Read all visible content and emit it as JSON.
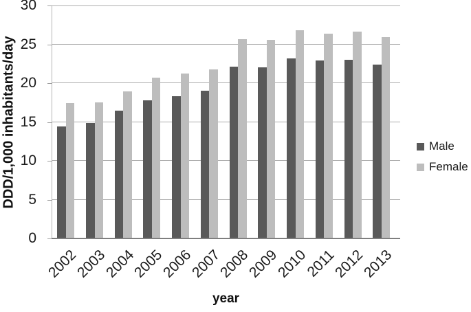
{
  "figure": {
    "background": "#ffffff"
  },
  "chart_data": {
    "type": "bar",
    "title": "",
    "xlabel": "year",
    "ylabel": "DDD/1,000 inhabitants/day",
    "categories": [
      "2002",
      "2003",
      "2004",
      "2005",
      "2006",
      "2007",
      "2008",
      "2009",
      "2010",
      "2011",
      "2012",
      "2013"
    ],
    "series": [
      {
        "name": "Male",
        "color": "#595959",
        "values": [
          14.4,
          14.9,
          16.5,
          17.8,
          18.3,
          19.0,
          22.1,
          22.0,
          23.2,
          22.9,
          23.0,
          22.4
        ]
      },
      {
        "name": "Female",
        "color": "#bdbdbd",
        "values": [
          17.4,
          17.5,
          18.9,
          20.7,
          21.2,
          21.8,
          25.7,
          25.6,
          26.8,
          26.4,
          26.6,
          25.9
        ]
      }
    ],
    "ylim": [
      0,
      30
    ],
    "yticks": [
      0,
      5,
      10,
      15,
      20,
      25,
      30
    ],
    "grid": true,
    "legend_position": "right",
    "legend_labels": [
      "Male",
      "Female"
    ]
  }
}
